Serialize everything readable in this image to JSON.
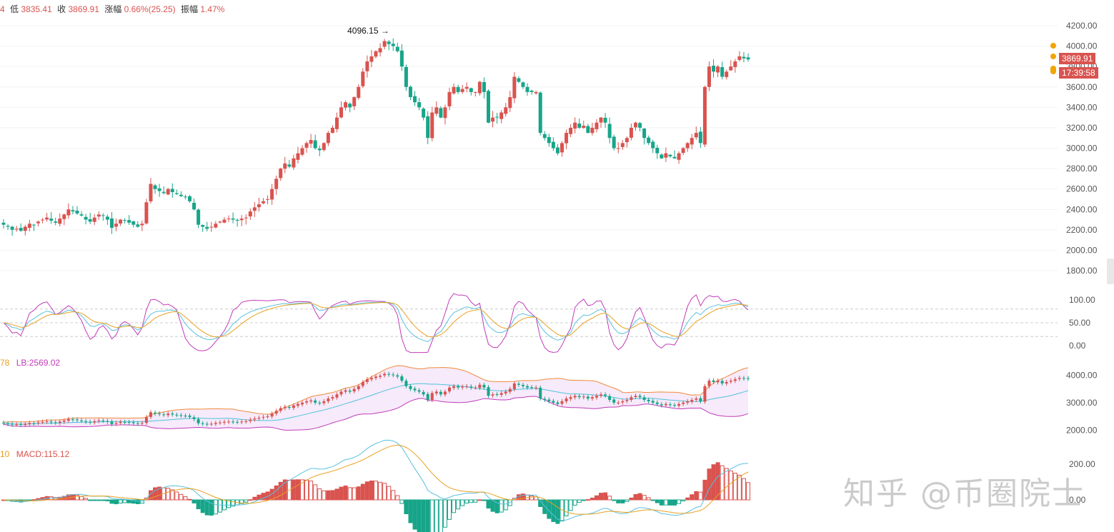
{
  "header": {
    "prefix": "4",
    "low_label": "低",
    "low_value": "3835.41",
    "close_label": "收",
    "close_value": "3869.91",
    "change_label": "涨幅",
    "change_value": "0.66%(25.25)",
    "amp_label": "振幅",
    "amp_value": "1.47%"
  },
  "price_panel": {
    "high_annotation": "4096.15 →",
    "current_price": "3869.91",
    "countdown": "17:39:58",
    "axis_ticks": [
      "4200.00",
      "4000.00",
      "3800.00",
      "3600.00",
      "3400.00",
      "3200.00",
      "3000.00",
      "2800.00",
      "2600.00",
      "2400.00",
      "2200.00",
      "2000.00",
      "1800.00"
    ]
  },
  "kdj_panel": {
    "axis_ticks": [
      "100.00",
      "50.00",
      "0.00"
    ]
  },
  "boll_panel": {
    "label_left": "78",
    "lb_label": "LB:2569.02",
    "axis_ticks": [
      "4000.00",
      "3000.00",
      "2000.00"
    ]
  },
  "macd_panel": {
    "label_left": "10",
    "macd_label": "MACD:115.12",
    "axis_ticks": [
      "200.00",
      "0.00"
    ]
  },
  "watermark": "知乎 @币圈院士",
  "colors": {
    "up": "#d9534f",
    "down": "#17a589",
    "k": "#5bc0de",
    "d": "#e8a020",
    "j": "#c13bb8",
    "mid": "#4fc3d9"
  },
  "chart_data": {
    "type": "candlestick",
    "ylim": [
      1700,
      4300
    ],
    "closes": [
      2250,
      2230,
      2200,
      2210,
      2190,
      2230,
      2260,
      2250,
      2280,
      2300,
      2320,
      2290,
      2270,
      2310,
      2350,
      2400,
      2380,
      2360,
      2340,
      2300,
      2280,
      2320,
      2350,
      2340,
      2300,
      2220,
      2260,
      2300,
      2290,
      2270,
      2250,
      2230,
      2260,
      2470,
      2650,
      2600,
      2580,
      2560,
      2600,
      2570,
      2550,
      2530,
      2520,
      2480,
      2400,
      2250,
      2230,
      2210,
      2230,
      2260,
      2280,
      2300,
      2310,
      2300,
      2290,
      2310,
      2320,
      2380,
      2420,
      2450,
      2480,
      2500,
      2600,
      2700,
      2800,
      2850,
      2820,
      2900,
      2950,
      3000,
      3050,
      3080,
      3000,
      2980,
      3050,
      3150,
      3200,
      3300,
      3400,
      3450,
      3400,
      3500,
      3600,
      3750,
      3850,
      3900,
      3950,
      3980,
      4050,
      4020,
      4000,
      3950,
      3800,
      3600,
      3500,
      3450,
      3400,
      3300,
      3100,
      3350,
      3400,
      3300,
      3400,
      3550,
      3600,
      3550,
      3580,
      3600,
      3550,
      3550,
      3650,
      3550,
      3250,
      3300,
      3300,
      3350,
      3400,
      3500,
      3700,
      3650,
      3600,
      3550,
      3550,
      3550,
      3150,
      3100,
      3050,
      3000,
      2950,
      3050,
      3150,
      3200,
      3250,
      3200,
      3220,
      3150,
      3200,
      3250,
      3300,
      3250,
      3100,
      3000,
      3000,
      3050,
      3100,
      3200,
      3250,
      3200,
      3100,
      3050,
      3000,
      2950,
      2900,
      2950,
      2920,
      2900,
      2950,
      3000,
      3050,
      3100,
      3150,
      3050,
      3600,
      3800,
      3750,
      3800,
      3700,
      3750,
      3800,
      3850,
      3900,
      3880,
      3870
    ]
  }
}
